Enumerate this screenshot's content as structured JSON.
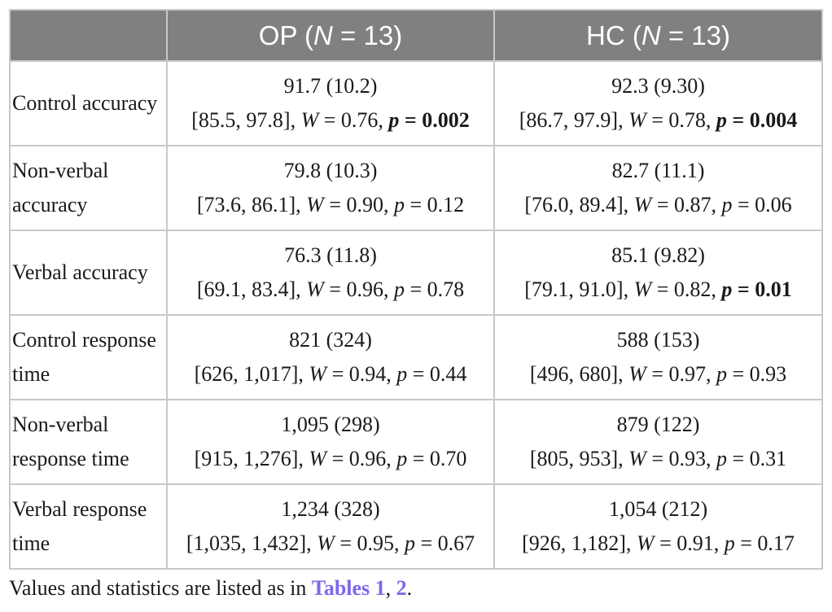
{
  "table": {
    "headers": [
      {
        "pre": "",
        "n": "",
        "post": ""
      },
      {
        "pre": "OP (",
        "n": "N",
        "post": " = 13)"
      },
      {
        "pre": "HC (",
        "n": "N",
        "post": " = 13)"
      }
    ],
    "rows": [
      {
        "label": "Control accuracy",
        "cells": [
          {
            "mean": "91.7 (10.2)",
            "ci": "[85.5, 97.8], ",
            "w_sym": "W",
            "w_val": " = 0.76, ",
            "p_sym": "p",
            "p_val": " = 0.002",
            "sig": true
          },
          {
            "mean": "92.3 (9.30)",
            "ci": "[86.7, 97.9], ",
            "w_sym": "W",
            "w_val": " = 0.78, ",
            "p_sym": "p",
            "p_val": " = 0.004",
            "sig": true
          }
        ]
      },
      {
        "label": "Non-verbal accuracy",
        "cells": [
          {
            "mean": "79.8 (10.3)",
            "ci": "[73.6, 86.1], ",
            "w_sym": "W",
            "w_val": " = 0.90, ",
            "p_sym": "p",
            "p_val": " = 0.12",
            "sig": false
          },
          {
            "mean": "82.7 (11.1)",
            "ci": "[76.0, 89.4], ",
            "w_sym": "W",
            "w_val": " = 0.87, ",
            "p_sym": "p",
            "p_val": " = 0.06",
            "sig": false
          }
        ]
      },
      {
        "label": "Verbal accuracy",
        "cells": [
          {
            "mean": "76.3 (11.8)",
            "ci": "[69.1, 83.4], ",
            "w_sym": "W",
            "w_val": " = 0.96, ",
            "p_sym": "p",
            "p_val": " = 0.78",
            "sig": false
          },
          {
            "mean": "85.1 (9.82)",
            "ci": "[79.1, 91.0], ",
            "w_sym": "W",
            "w_val": " = 0.82, ",
            "p_sym": "p",
            "p_val": " = 0.01",
            "sig": true
          }
        ]
      },
      {
        "label": "Control response time",
        "cells": [
          {
            "mean": "821 (324)",
            "ci": "[626, 1,017], ",
            "w_sym": "W",
            "w_val": " = 0.94, ",
            "p_sym": "p",
            "p_val": " = 0.44",
            "sig": false
          },
          {
            "mean": "588 (153)",
            "ci": "[496, 680], ",
            "w_sym": "W",
            "w_val": " = 0.97, ",
            "p_sym": "p",
            "p_val": " = 0.93",
            "sig": false
          }
        ]
      },
      {
        "label": "Non-verbal response time",
        "cells": [
          {
            "mean": "1,095 (298)",
            "ci": "[915, 1,276], ",
            "w_sym": "W",
            "w_val": " = 0.96, ",
            "p_sym": "p",
            "p_val": " = 0.70",
            "sig": false
          },
          {
            "mean": "879 (122)",
            "ci": "[805, 953], ",
            "w_sym": "W",
            "w_val": " = 0.93, ",
            "p_sym": "p",
            "p_val": " = 0.31",
            "sig": false
          }
        ]
      },
      {
        "label": "Verbal response time",
        "cells": [
          {
            "mean": "1,234 (328)",
            "ci": "[1,035, 1,432], ",
            "w_sym": "W",
            "w_val": " = 0.95, ",
            "p_sym": "p",
            "p_val": " = 0.67",
            "sig": false
          },
          {
            "mean": "1,054 (212)",
            "ci": "[926, 1,182], ",
            "w_sym": "W",
            "w_val": " = 0.91, ",
            "p_sym": "p",
            "p_val": " = 0.17",
            "sig": false
          }
        ]
      }
    ]
  },
  "footnote": {
    "text": "Values and statistics are listed as in ",
    "link1": "Tables 1",
    "sep": ", ",
    "link2": "2",
    "end": "."
  },
  "colors": {
    "header_bg": "#808080",
    "header_text": "#ffffff",
    "border": "#c8c8c8",
    "link": "#7b68ee"
  }
}
